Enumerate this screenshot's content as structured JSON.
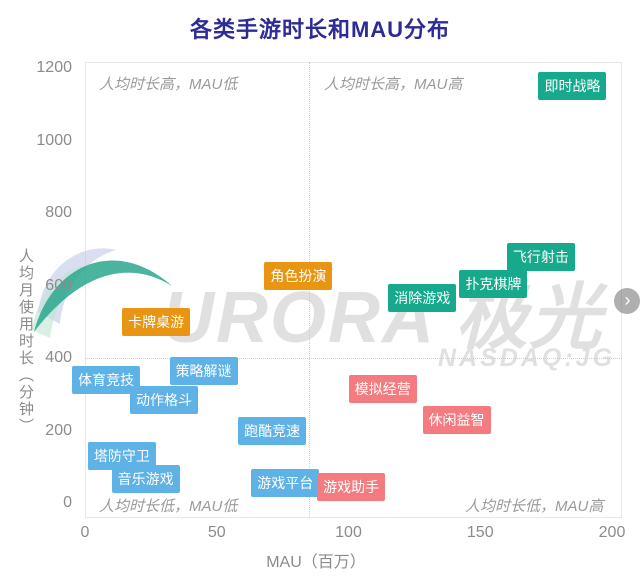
{
  "title": "各类手游时长和MAU分布",
  "watermark": {
    "logo_text": "URORA 极光",
    "ticker": "NASDAQ:JG",
    "next_icon": "›"
  },
  "chart_data": {
    "type": "scatter",
    "title": "各类手游时长和MAU分布",
    "xlabel": "MAU（百万）",
    "ylabel": "人均月使用时长（分钟）",
    "xlim": [
      0,
      200
    ],
    "ylim": [
      0,
      1200
    ],
    "x_ticks": [
      0,
      50,
      100,
      150,
      200
    ],
    "y_ticks": [
      0,
      200,
      400,
      600,
      800,
      1000,
      1200
    ],
    "grid": false,
    "legend": false,
    "quadrant_labels": {
      "top_left": "人均时长高，MAU低",
      "top_right": "人均时长高，MAU高",
      "bottom_left": "人均时长低，MAU低",
      "bottom_right": "人均时长低，MAU高"
    },
    "divider_values": {
      "x_mau": 85,
      "y_minutes": 400
    },
    "colors": {
      "green": "#16a98c",
      "orange": "#e79512",
      "blue": "#5fb2e6",
      "pink": "#f47c80"
    },
    "points": [
      {
        "name": "即时战略",
        "mau": 185,
        "minutes": 1150,
        "group": "green"
      },
      {
        "name": "飞行射击",
        "mau": 173,
        "minutes": 680,
        "group": "green"
      },
      {
        "name": "扑克棋牌",
        "mau": 155,
        "minutes": 605,
        "group": "green"
      },
      {
        "name": "消除游戏",
        "mau": 128,
        "minutes": 565,
        "group": "green"
      },
      {
        "name": "角色扮演",
        "mau": 81,
        "minutes": 625,
        "group": "orange"
      },
      {
        "name": "卡牌桌游",
        "mau": 27,
        "minutes": 500,
        "group": "orange"
      },
      {
        "name": "策略解谜",
        "mau": 45,
        "minutes": 365,
        "group": "blue"
      },
      {
        "name": "体育竞技",
        "mau": 8,
        "minutes": 340,
        "group": "blue"
      },
      {
        "name": "动作格斗",
        "mau": 30,
        "minutes": 285,
        "group": "blue"
      },
      {
        "name": "跑酷竞速",
        "mau": 71,
        "minutes": 200,
        "group": "blue"
      },
      {
        "name": "塔防守卫",
        "mau": 14,
        "minutes": 130,
        "group": "blue"
      },
      {
        "name": "音乐游戏",
        "mau": 23,
        "minutes": 65,
        "group": "blue"
      },
      {
        "name": "游戏平台",
        "mau": 76,
        "minutes": 55,
        "group": "blue"
      },
      {
        "name": "游戏助手",
        "mau": 101,
        "minutes": 45,
        "group": "pink"
      },
      {
        "name": "模拟经营",
        "mau": 113,
        "minutes": 315,
        "group": "pink"
      },
      {
        "name": "休闲益智",
        "mau": 141,
        "minutes": 230,
        "group": "pink"
      }
    ]
  }
}
